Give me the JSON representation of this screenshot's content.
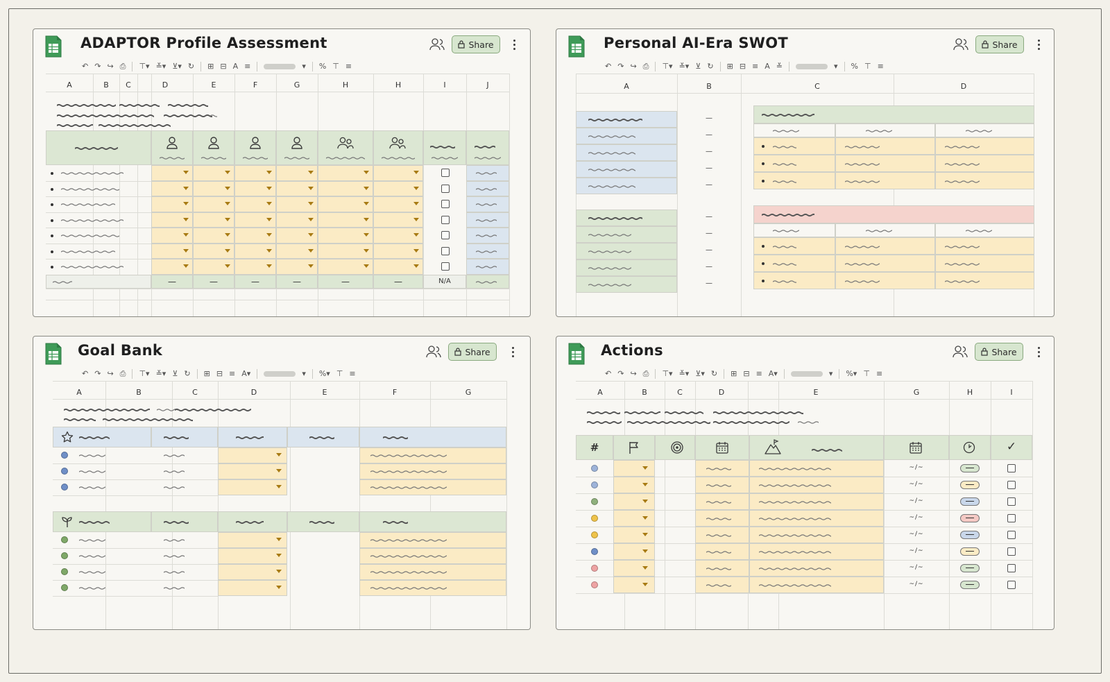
{
  "windows": [
    {
      "id": "adaptor",
      "title": "ADAPTOR Profile Assessment",
      "share_label": "Share",
      "columns": [
        "A",
        "B",
        "C",
        "D",
        "E",
        "F",
        "G",
        "H",
        "H",
        "I",
        "J"
      ],
      "rows": 7,
      "footer": {
        "totals": [
          "—",
          "—",
          "—",
          "—",
          "—",
          "—"
        ],
        "na_label": "N/A"
      }
    },
    {
      "id": "swot",
      "title": "Personal AI-Era SWOT",
      "share_label": "Share",
      "columns": [
        "A",
        "B",
        "C",
        "D"
      ],
      "rows_upper": 5,
      "rows_lower": 5,
      "dash": "—"
    },
    {
      "id": "goals",
      "title": "Goal Bank",
      "share_label": "Share",
      "columns": [
        "A",
        "B",
        "C",
        "D",
        "E",
        "F",
        "G"
      ],
      "rows_upper": 3,
      "rows_lower": 4
    },
    {
      "id": "actions",
      "title": "Actions",
      "share_label": "Share",
      "columns": [
        "A",
        "B",
        "C",
        "D",
        "E",
        "G",
        "H",
        "I"
      ],
      "header": {
        "number": "#",
        "done": "✓"
      },
      "date_text": "~/~",
      "rows": 8,
      "row_dots": [
        "#9db3d9",
        "#9db3d9",
        "#8fb07c",
        "#efc34a",
        "#efc34a",
        "#6f8fc7",
        "#eea3a3",
        "#eea3a3"
      ],
      "row_chips": [
        "#d7e6cf",
        "#fbebc5",
        "#c9d7ea",
        "#f5c9c4",
        "#c9d7ea",
        "#fbebc5",
        "#d7e6cf",
        "#d7e6cf"
      ]
    }
  ],
  "colors": {
    "green_header": "#dce7d3",
    "yellow_input": "#fbebc5",
    "blue_output": "#dbe5ef",
    "red_header": "#f5d3cd",
    "share_bg": "#d7e6cf"
  },
  "icons": [
    "sheets-icon",
    "people-icon",
    "lock-icon",
    "kebab-icon",
    "person-icon",
    "group-icon",
    "star-icon",
    "sprout-icon",
    "flag-icon",
    "target-icon",
    "calendar-icon",
    "mountain-icon",
    "clock-icon"
  ]
}
